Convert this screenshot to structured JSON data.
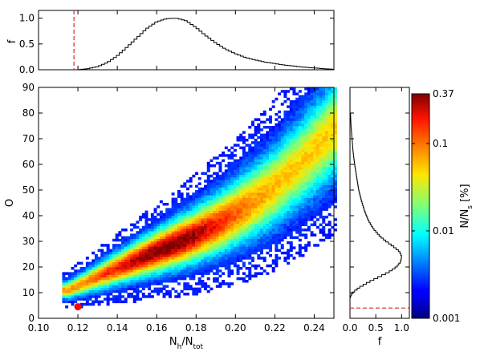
{
  "chart_data": [
    {
      "panel": "top-histogram",
      "type": "line",
      "ylabel": "f",
      "xlabel": "",
      "xlim": [
        0.1,
        0.25
      ],
      "ylim": [
        0,
        1.15
      ],
      "yticks": [
        "0.0",
        "0.5",
        "1.0"
      ],
      "xticks_labels": false,
      "x": [
        0.12,
        0.125,
        0.13,
        0.135,
        0.14,
        0.145,
        0.15,
        0.155,
        0.16,
        0.165,
        0.17,
        0.175,
        0.18,
        0.185,
        0.19,
        0.195,
        0.2,
        0.205,
        0.21,
        0.215,
        0.22,
        0.225,
        0.23,
        0.235,
        0.24,
        0.245,
        0.25
      ],
      "values": [
        0.0,
        0.02,
        0.06,
        0.14,
        0.27,
        0.44,
        0.62,
        0.8,
        0.93,
        0.99,
        1.0,
        0.95,
        0.82,
        0.66,
        0.52,
        0.4,
        0.31,
        0.24,
        0.19,
        0.15,
        0.12,
        0.09,
        0.07,
        0.05,
        0.035,
        0.02,
        0.01
      ],
      "reference_line": {
        "x": 0.118,
        "style": "dashed",
        "color": "#d62728"
      }
    },
    {
      "panel": "main-2d-histogram",
      "type": "heatmap",
      "xlabel": "N_h/N_tot",
      "ylabel": "O",
      "xlim": [
        0.1,
        0.25
      ],
      "ylim": [
        0,
        90
      ],
      "xticks": [
        "0.10",
        "0.12",
        "0.14",
        "0.16",
        "0.18",
        "0.20",
        "0.22",
        "0.24"
      ],
      "yticks": [
        "0",
        "10",
        "20",
        "30",
        "40",
        "50",
        "60",
        "70",
        "80",
        "90"
      ],
      "density_ridge": {
        "x": [
          0.115,
          0.13,
          0.145,
          0.16,
          0.175,
          0.19,
          0.205,
          0.22,
          0.235,
          0.248
        ],
        "y_center": [
          11,
          16,
          21,
          26,
          31,
          37,
          44,
          52,
          62,
          72
        ]
      },
      "peak": {
        "x": 0.165,
        "y": 27
      },
      "highlight_point": {
        "x": 0.12,
        "y": 4.5,
        "color": "#ff0000"
      }
    },
    {
      "panel": "right-histogram",
      "type": "line",
      "xlabel": "f",
      "ylabel": "",
      "xlim": [
        0,
        1.15
      ],
      "ylim": [
        0,
        90
      ],
      "xticks": [
        "0.0",
        "0.5",
        "1.0"
      ],
      "y": [
        8,
        10,
        12,
        14,
        16,
        18,
        20,
        22,
        24,
        26,
        28,
        30,
        32,
        35,
        38,
        42,
        46,
        50,
        55,
        60,
        65,
        70,
        75,
        80
      ],
      "values": [
        0.0,
        0.05,
        0.18,
        0.35,
        0.55,
        0.75,
        0.9,
        0.98,
        1.0,
        0.96,
        0.84,
        0.7,
        0.58,
        0.45,
        0.36,
        0.28,
        0.22,
        0.17,
        0.13,
        0.09,
        0.06,
        0.04,
        0.02,
        0.01
      ],
      "reference_line": {
        "y": 4,
        "style": "dashed",
        "color": "#d62728"
      }
    },
    {
      "panel": "colorbar",
      "type": "heatmap",
      "label": "N/N_s [%]",
      "scale": "log",
      "range": [
        0.001,
        0.37
      ],
      "ticks": [
        "0.37",
        "0.1",
        "0.01",
        "0.001"
      ],
      "tick_values": [
        0.37,
        0.1,
        0.01,
        0.001
      ],
      "colormap": "jet"
    }
  ]
}
